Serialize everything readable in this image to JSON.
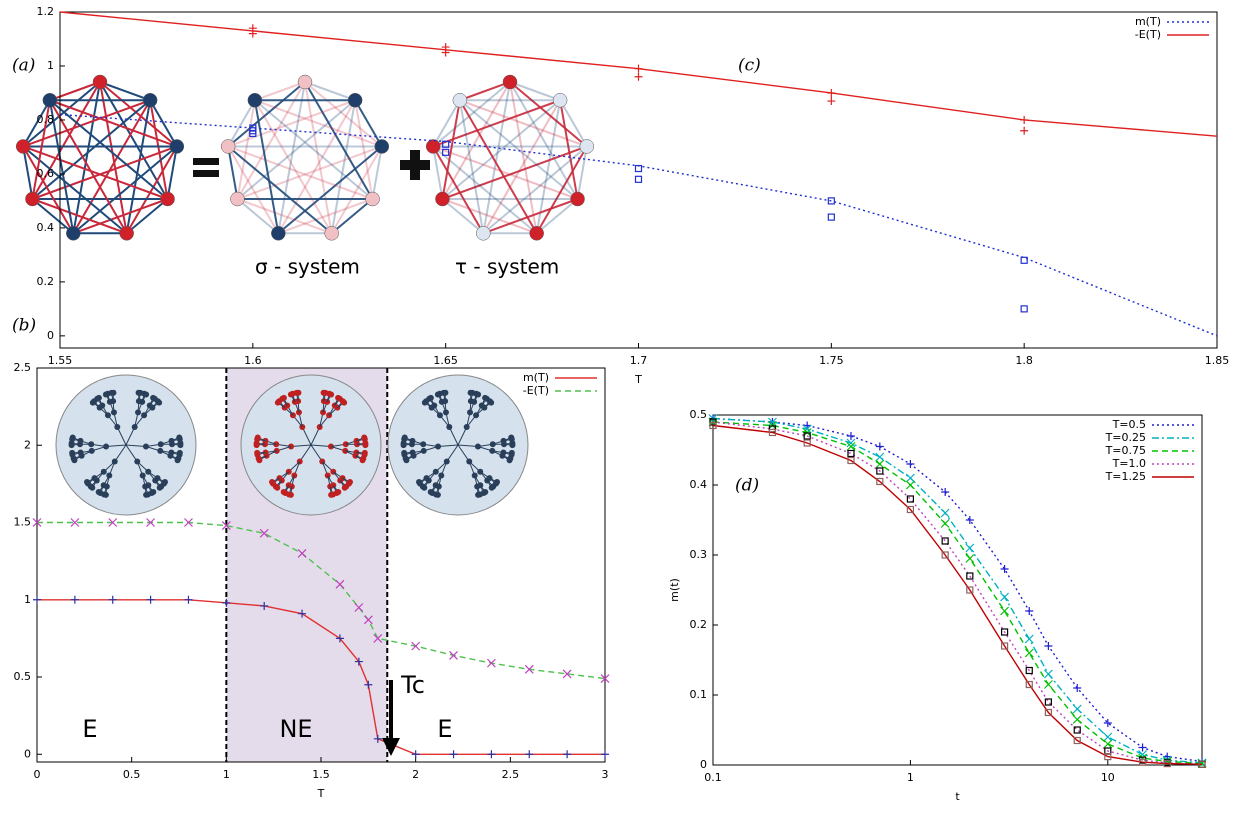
{
  "diagram": {
    "panel_label": "(a)",
    "captions": [
      "σ - system",
      "τ - system"
    ]
  },
  "chart_data": [
    {
      "type": "line",
      "panel_label": "(b)",
      "x_label": "T",
      "x": [
        0,
        0.2,
        0.4,
        0.6,
        0.8,
        1,
        1.2,
        1.4,
        1.6,
        1.7,
        1.75,
        1.8,
        2,
        2.2,
        2.4,
        2.6,
        2.8,
        3
      ],
      "series": [
        {
          "name": "m(T)",
          "color": "#e03030",
          "marker_color": "#3030a0",
          "marker": "plus",
          "line_style": "solid",
          "values": [
            1,
            1,
            1,
            1,
            1,
            0.98,
            0.96,
            0.91,
            0.75,
            0.6,
            0.45,
            0.1,
            0,
            0,
            0,
            0,
            0,
            0
          ]
        },
        {
          "name": "-E(T)",
          "color": "#50c050",
          "marker_color": "#c040c0",
          "marker": "cross",
          "line_style": "dashed",
          "values": [
            1.5,
            1.5,
            1.5,
            1.5,
            1.5,
            1.48,
            1.43,
            1.3,
            1.1,
            0.95,
            0.87,
            0.75,
            0.7,
            0.64,
            0.59,
            0.55,
            0.52,
            0.49
          ]
        }
      ],
      "xlim": [
        0,
        3
      ],
      "xticks": [
        0,
        0.5,
        1,
        1.5,
        2,
        2.5,
        3
      ],
      "ylim": [
        -0.05,
        2.5
      ],
      "yticks": [
        0,
        0.5,
        1,
        1.5,
        2,
        2.5
      ],
      "shaded_region": [
        1,
        1.85
      ],
      "legend": "top-right",
      "annotations": [
        "E",
        "NE",
        "E",
        "Tc"
      ]
    },
    {
      "type": "line",
      "panel_label": "(c)",
      "x_label": "T",
      "x": [
        1.55,
        1.6,
        1.65,
        1.7,
        1.75,
        1.8,
        1.85
      ],
      "series": [
        {
          "name": "m(T)",
          "color": "#2030d0",
          "marker_color": "#2030d0",
          "marker": "square",
          "line_style": "dotted",
          "values": [
            0.82,
            0.77,
            0.72,
            0.63,
            0.5,
            0.29,
            0
          ],
          "point_x": [
            1.6,
            1.6,
            1.6,
            1.65,
            1.65,
            1.7,
            1.7,
            1.75,
            1.75,
            1.8,
            1.8
          ],
          "point_values": [
            0.77,
            0.76,
            0.75,
            0.71,
            0.68,
            0.62,
            0.58,
            0.5,
            0.44,
            0.28,
            0.1
          ]
        },
        {
          "name": "-E(T)",
          "color": "#e02020",
          "marker_color": "#e02020",
          "marker": "plus",
          "line_style": "solid",
          "values": [
            1.2,
            1.13,
            1.06,
            0.99,
            0.9,
            0.8,
            0.74
          ],
          "point_x": [
            1.6,
            1.6,
            1.65,
            1.65,
            1.7,
            1.7,
            1.75,
            1.75,
            1.8,
            1.8
          ],
          "point_values": [
            1.14,
            1.12,
            1.07,
            1.05,
            0.99,
            0.96,
            0.9,
            0.87,
            0.8,
            0.76
          ]
        }
      ],
      "xlim": [
        1.55,
        1.85
      ],
      "xticks": [
        1.55,
        1.6,
        1.65,
        1.7,
        1.75,
        1.8,
        1.85
      ],
      "ylim": [
        -0.045,
        1.2
      ],
      "yticks": [
        0,
        0.2,
        0.4,
        0.6,
        0.8,
        1,
        1.2
      ],
      "legend": "top-right"
    },
    {
      "type": "line",
      "panel_label": "(d)",
      "x_label": "t",
      "y_label": "m(t)",
      "log_x": true,
      "x": [
        0.1,
        0.2,
        0.3,
        0.5,
        0.7,
        1,
        1.5,
        2,
        3,
        4,
        5,
        7,
        10,
        15,
        20,
        30
      ],
      "series": [
        {
          "name": "T=0.5",
          "color": "#1f1fd0",
          "marker_color": "#1f1fd0",
          "marker": "plus",
          "line_style": "dotted",
          "values": [
            0.495,
            0.49,
            0.485,
            0.47,
            0.455,
            0.43,
            0.39,
            0.35,
            0.28,
            0.22,
            0.17,
            0.11,
            0.06,
            0.025,
            0.012,
            0.005
          ]
        },
        {
          "name": "T=0.25",
          "color": "#00b0c0",
          "marker_color": "#00b0c0",
          "marker": "cross",
          "line_style": "dashdot",
          "values": [
            0.495,
            0.49,
            0.48,
            0.46,
            0.44,
            0.41,
            0.36,
            0.31,
            0.24,
            0.18,
            0.13,
            0.08,
            0.04,
            0.015,
            0.007,
            0.003
          ]
        },
        {
          "name": "T=0.75",
          "color": "#00c000",
          "marker_color": "#00c000",
          "marker": "cross",
          "line_style": "dashed",
          "values": [
            0.49,
            0.485,
            0.475,
            0.455,
            0.43,
            0.4,
            0.345,
            0.295,
            0.22,
            0.16,
            0.115,
            0.065,
            0.03,
            0.01,
            0.005,
            0.002
          ]
        },
        {
          "name": "T=1.0",
          "color": "#c040c0",
          "marker_color": "#000000",
          "marker": "square",
          "line_style": "dotted",
          "values": [
            0.49,
            0.48,
            0.47,
            0.445,
            0.42,
            0.38,
            0.32,
            0.27,
            0.19,
            0.135,
            0.09,
            0.05,
            0.02,
            0.007,
            0.003,
            0.001
          ]
        },
        {
          "name": "T=1.25",
          "color": "#c00000",
          "marker_color": "#906060",
          "marker": "square",
          "line_style": "solid",
          "values": [
            0.485,
            0.475,
            0.46,
            0.435,
            0.405,
            0.365,
            0.3,
            0.25,
            0.17,
            0.115,
            0.075,
            0.035,
            0.012,
            0.004,
            0.002,
            0.001
          ]
        }
      ],
      "xlim": [
        0.1,
        30
      ],
      "xticks": [
        0.1,
        1,
        10
      ],
      "ylim": [
        0,
        0.5
      ],
      "yticks": [
        0,
        0.1,
        0.2,
        0.3,
        0.4,
        0.5
      ],
      "legend": "top-right"
    }
  ]
}
